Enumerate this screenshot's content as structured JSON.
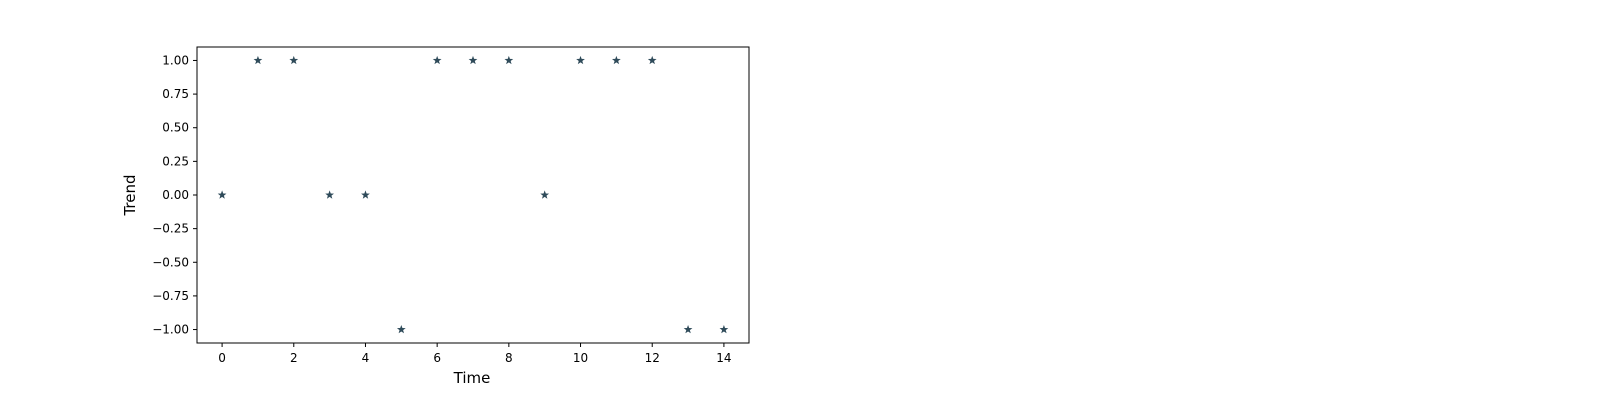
{
  "chart_data": {
    "type": "scatter",
    "title": "",
    "xlabel": "Time",
    "ylabel": "Trend",
    "xlim": [
      -0.7,
      14.7
    ],
    "ylim": [
      -1.1,
      1.1
    ],
    "xticks": [
      0,
      2,
      4,
      6,
      8,
      10,
      12,
      14
    ],
    "xtick_labels": [
      "0",
      "2",
      "4",
      "6",
      "8",
      "10",
      "12",
      "14"
    ],
    "yticks": [
      1.0,
      0.75,
      0.5,
      0.25,
      0.0,
      -0.25,
      -0.5,
      -0.75,
      -1.0
    ],
    "ytick_labels": [
      "1.00",
      "0.75",
      "0.50",
      "0.25",
      "0.00",
      "−0.25",
      "−0.50",
      "−0.75",
      "−1.00"
    ],
    "grid": false,
    "marker": "star",
    "colors": {
      "marker": "#2f4b5a",
      "axis": "#000000"
    },
    "series": [
      {
        "name": "Trend",
        "x": [
          0,
          1,
          2,
          3,
          4,
          5,
          6,
          7,
          8,
          9,
          10,
          11,
          12,
          13,
          14
        ],
        "y": [
          0,
          1,
          1,
          0,
          0,
          -1,
          1,
          1,
          1,
          0,
          1,
          1,
          1,
          -1,
          -1
        ]
      }
    ]
  }
}
